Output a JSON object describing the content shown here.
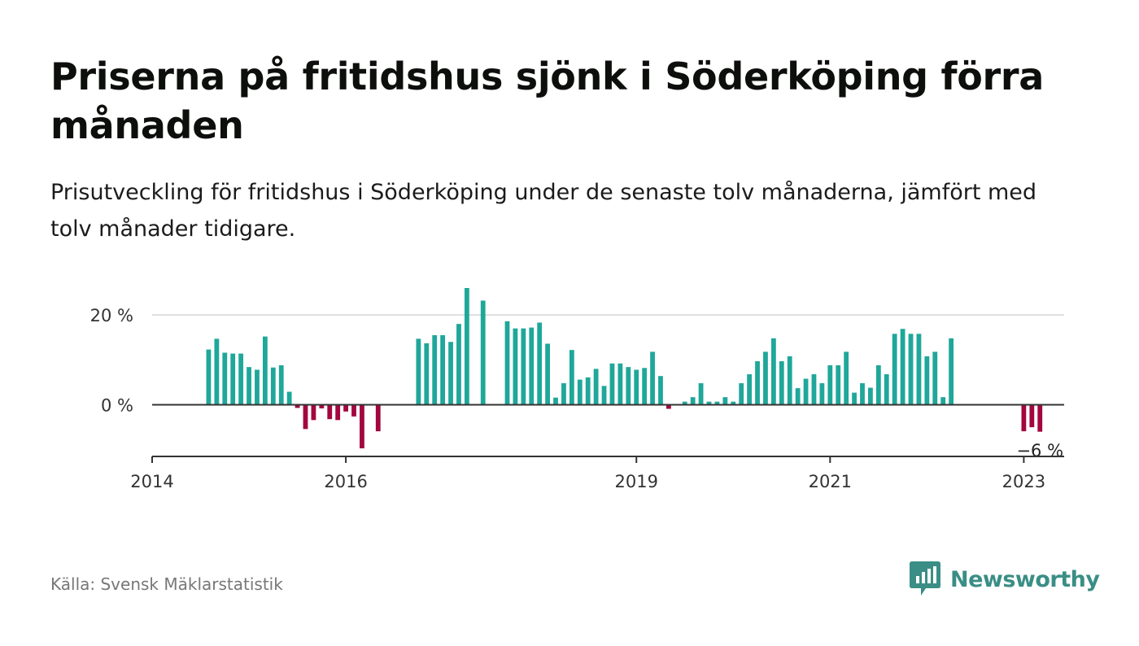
{
  "title": "Priserna på fritidshus sjönk i Söderköping förra månaden",
  "subtitle": "Prisutveckling för fritidshus i Söderköping under de senaste tolv månaderna, jämfört med tolv månader tidigare.",
  "source": "Källa: Svensk Mäklarstatistik",
  "brand": {
    "name": "Newsworthy",
    "logo_icon": "bar-chart-speech-bubble-icon",
    "color": "#3a8e85"
  },
  "colors": {
    "positive": "#1fa79a",
    "negative": "#a3063f",
    "grid": "#dedede",
    "axis": "#333333"
  },
  "chart_data": {
    "type": "bar",
    "title": "Priserna på fritidshus sjönk i Söderköping förra månaden",
    "subtitle": "Prisutveckling för fritidshus i Söderköping under de senaste tolv månaderna, jämfört med tolv månader tidigare.",
    "xlabel": "",
    "ylabel": "",
    "unit": "%",
    "grid": true,
    "legend": "none",
    "xlim": [
      "2014-01",
      "2023-06"
    ],
    "ylim": [
      -11.5,
      26
    ],
    "y_ticks": [
      {
        "value": 0,
        "label": "0 %"
      },
      {
        "value": 20,
        "label": "20 %"
      }
    ],
    "x_ticks": [
      {
        "date": "2014-01",
        "label": "2014"
      },
      {
        "date": "2016-01",
        "label": "2016"
      },
      {
        "date": "2019-01",
        "label": "2019"
      },
      {
        "date": "2021-01",
        "label": "2021"
      },
      {
        "date": "2023-01",
        "label": "2023"
      }
    ],
    "annotation": {
      "date": "2023-03",
      "label": "−6 %"
    },
    "series": [
      {
        "points": [
          [
            "2014-08",
            12.3
          ],
          [
            "2014-09",
            14.7
          ],
          [
            "2014-10",
            11.6
          ],
          [
            "2014-11",
            11.4
          ],
          [
            "2014-12",
            11.4
          ],
          [
            "2015-01",
            8.4
          ],
          [
            "2015-02",
            7.8
          ],
          [
            "2015-03",
            15.2
          ],
          [
            "2015-04",
            8.3
          ],
          [
            "2015-05",
            8.8
          ],
          [
            "2015-06",
            2.9
          ],
          [
            "2015-07",
            -0.7
          ],
          [
            "2015-08",
            -5.4
          ],
          [
            "2015-09",
            -3.4
          ],
          [
            "2015-10",
            -0.8
          ],
          [
            "2015-11",
            -3.2
          ],
          [
            "2015-12",
            -3.4
          ],
          [
            "2016-01",
            -1.5
          ],
          [
            "2016-02",
            -2.6
          ],
          [
            "2016-03",
            -9.7
          ],
          [
            "2016-05",
            -5.9
          ],
          [
            "2016-10",
            14.7
          ],
          [
            "2016-11",
            13.7
          ],
          [
            "2016-12",
            15.5
          ],
          [
            "2017-01",
            15.5
          ],
          [
            "2017-02",
            14.0
          ],
          [
            "2017-03",
            18.0
          ],
          [
            "2017-04",
            26.0
          ],
          [
            "2017-06",
            23.2
          ],
          [
            "2017-09",
            18.6
          ],
          [
            "2017-10",
            17.0
          ],
          [
            "2017-11",
            17.0
          ],
          [
            "2017-12",
            17.2
          ],
          [
            "2018-01",
            18.3
          ],
          [
            "2018-02",
            13.6
          ],
          [
            "2018-03",
            1.6
          ],
          [
            "2018-04",
            4.8
          ],
          [
            "2018-05",
            12.2
          ],
          [
            "2018-06",
            5.6
          ],
          [
            "2018-07",
            6.1
          ],
          [
            "2018-08",
            8.0
          ],
          [
            "2018-09",
            4.2
          ],
          [
            "2018-10",
            9.2
          ],
          [
            "2018-11",
            9.2
          ],
          [
            "2018-12",
            8.4
          ],
          [
            "2019-01",
            7.8
          ],
          [
            "2019-02",
            8.2
          ],
          [
            "2019-03",
            11.8
          ],
          [
            "2019-04",
            6.4
          ],
          [
            "2019-05",
            -0.9
          ],
          [
            "2019-07",
            0.7
          ],
          [
            "2019-08",
            1.7
          ],
          [
            "2019-09",
            4.8
          ],
          [
            "2019-10",
            0.7
          ],
          [
            "2019-11",
            0.7
          ],
          [
            "2019-12",
            1.7
          ],
          [
            "2020-01",
            0.7
          ],
          [
            "2020-02",
            4.8
          ],
          [
            "2020-03",
            6.8
          ],
          [
            "2020-04",
            9.7
          ],
          [
            "2020-05",
            11.8
          ],
          [
            "2020-06",
            14.8
          ],
          [
            "2020-07",
            9.7
          ],
          [
            "2020-08",
            10.8
          ],
          [
            "2020-09",
            3.7
          ],
          [
            "2020-10",
            5.8
          ],
          [
            "2020-11",
            6.8
          ],
          [
            "2020-12",
            4.8
          ],
          [
            "2021-01",
            8.8
          ],
          [
            "2021-02",
            8.8
          ],
          [
            "2021-03",
            11.8
          ],
          [
            "2021-04",
            2.7
          ],
          [
            "2021-05",
            4.8
          ],
          [
            "2021-06",
            3.8
          ],
          [
            "2021-07",
            8.8
          ],
          [
            "2021-08",
            6.8
          ],
          [
            "2021-09",
            15.8
          ],
          [
            "2021-10",
            16.9
          ],
          [
            "2021-11",
            15.8
          ],
          [
            "2021-12",
            15.8
          ],
          [
            "2022-01",
            10.8
          ],
          [
            "2022-02",
            11.8
          ],
          [
            "2022-03",
            1.7
          ],
          [
            "2022-04",
            14.8
          ],
          [
            "2023-01",
            -5.9
          ],
          [
            "2023-02",
            -5.0
          ],
          [
            "2023-03",
            -6.0
          ]
        ]
      }
    ]
  }
}
